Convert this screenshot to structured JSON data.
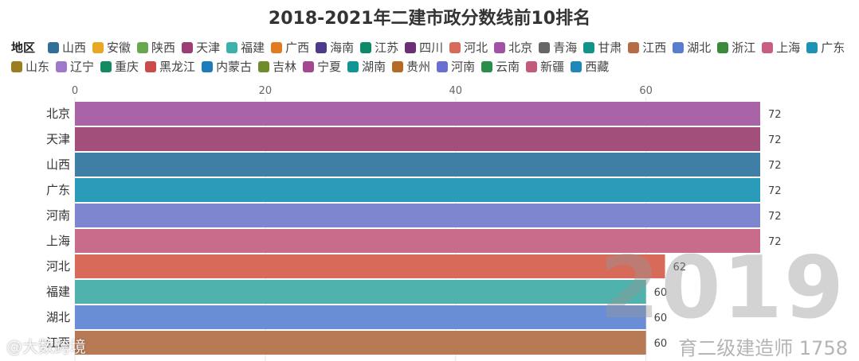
{
  "chart_data": {
    "type": "bar",
    "orientation": "horizontal",
    "title": "2018-2021年二建市政分数线前10排名",
    "legend_title": "地区",
    "legend": [
      {
        "name": "山西",
        "color": "#2f6f98"
      },
      {
        "name": "安徽",
        "color": "#e8a824"
      },
      {
        "name": "陕西",
        "color": "#6aa84f"
      },
      {
        "name": "天津",
        "color": "#9c3d73"
      },
      {
        "name": "福建",
        "color": "#3cb0aa"
      },
      {
        "name": "广西",
        "color": "#e07b20"
      },
      {
        "name": "海南",
        "color": "#4e3a8a"
      },
      {
        "name": "江苏",
        "color": "#0f8a68"
      },
      {
        "name": "四川",
        "color": "#6b2f74"
      },
      {
        "name": "河北",
        "color": "#d86a5a"
      },
      {
        "name": "北京",
        "color": "#a252a6"
      },
      {
        "name": "青海",
        "color": "#666666"
      },
      {
        "name": "甘肃",
        "color": "#109389"
      },
      {
        "name": "江西",
        "color": "#b56b44"
      },
      {
        "name": "湖北",
        "color": "#5a7ccf"
      },
      {
        "name": "浙江",
        "color": "#3a8a3a"
      },
      {
        "name": "上海",
        "color": "#c95f80"
      },
      {
        "name": "广东",
        "color": "#1a93b6"
      },
      {
        "name": "山东",
        "color": "#9b7d22"
      },
      {
        "name": "辽宁",
        "color": "#9f79c9"
      },
      {
        "name": "重庆",
        "color": "#138a62"
      },
      {
        "name": "黑龙江",
        "color": "#cd4a4a"
      },
      {
        "name": "内蒙古",
        "color": "#1b7dbd"
      },
      {
        "name": "吉林",
        "color": "#6f8b2c"
      },
      {
        "name": "宁夏",
        "color": "#a3478e"
      },
      {
        "name": "湖南",
        "color": "#109595"
      },
      {
        "name": "贵州",
        "color": "#b56b26"
      },
      {
        "name": "河南",
        "color": "#6b6fd2"
      },
      {
        "name": "云南",
        "color": "#2a8d49"
      },
      {
        "name": "新疆",
        "color": "#c25a7a"
      },
      {
        "name": "西藏",
        "color": "#1f88b8"
      }
    ],
    "categories": [
      "北京",
      "天津",
      "山西",
      "广东",
      "河南",
      "上海",
      "河北",
      "福建",
      "湖北",
      "江西"
    ],
    "values": [
      72,
      72,
      72,
      72,
      72,
      72,
      62,
      60,
      60,
      60
    ],
    "bar_colors": [
      "#a864a7",
      "#a2507b",
      "#3f7fa6",
      "#2a9cba",
      "#7d86ce",
      "#c96b8a",
      "#d86a5a",
      "#4fb2ad",
      "#6a8ed6",
      "#b87a55"
    ],
    "x_ticks": [
      0,
      20,
      40,
      60
    ],
    "xlim": [
      0,
      72
    ],
    "year": "2019",
    "grid": true,
    "legend_position": "top"
  },
  "page": {
    "credit": "@大数跨境",
    "watermark_right": "育二级建造师 1758"
  }
}
